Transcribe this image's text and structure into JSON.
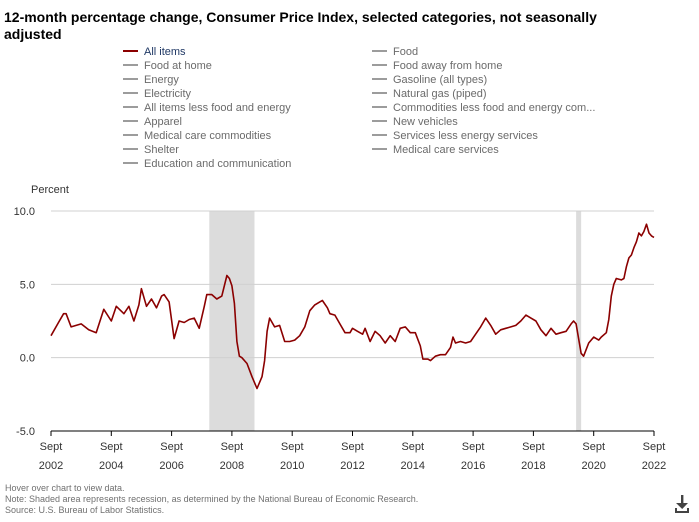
{
  "title": "12-month percentage change, Consumer Price Index, selected categories, not seasonally adjusted",
  "legend": [
    {
      "label": "All items",
      "active": true
    },
    {
      "label": "Food",
      "active": false
    },
    {
      "label": "Food at home",
      "active": false
    },
    {
      "label": "Food away from home",
      "active": false
    },
    {
      "label": "Energy",
      "active": false
    },
    {
      "label": "Gasoline (all types)",
      "active": false
    },
    {
      "label": "Electricity",
      "active": false
    },
    {
      "label": "Natural gas (piped)",
      "active": false
    },
    {
      "label": "All items less food and energy",
      "active": false
    },
    {
      "label": "Commodities less food and energy com...",
      "active": false
    },
    {
      "label": "Apparel",
      "active": false
    },
    {
      "label": "New vehicles",
      "active": false
    },
    {
      "label": "Medical care commodities",
      "active": false
    },
    {
      "label": "Services less energy services",
      "active": false
    },
    {
      "label": "Shelter",
      "active": false
    },
    {
      "label": "Medical care services",
      "active": false
    },
    {
      "label": "Education and communication",
      "active": false
    }
  ],
  "colors": {
    "series": "#8b0000",
    "recession": "#dcdcdc",
    "grid": "#d0d0d0",
    "axis": "#000000",
    "legend_inactive": "#9c9c9c"
  },
  "footer": {
    "hover": "Hover over chart to view data.",
    "note": "Note: Shaded area represents recession, as determined by the National Bureau of Economic Research.",
    "source": "Source: U.S. Bureau of Labor Statistics."
  },
  "download_icon": "download-icon",
  "chart_data": {
    "type": "line",
    "title": "12-month percentage change, Consumer Price Index, selected categories, not seasonally adjusted",
    "ylabel": "Percent",
    "ylim": [
      -5.0,
      10.0
    ],
    "y_ticks": [
      "10.0",
      "5.0",
      "0.0",
      "-5.0"
    ],
    "y_tick_values": [
      10,
      5,
      0,
      -5
    ],
    "x_range": [
      "2002-09",
      "2022-09"
    ],
    "x_ticks": [
      {
        "month": "Sept",
        "year": "2002"
      },
      {
        "month": "Sept",
        "year": "2004"
      },
      {
        "month": "Sept",
        "year": "2006"
      },
      {
        "month": "Sept",
        "year": "2008"
      },
      {
        "month": "Sept",
        "year": "2010"
      },
      {
        "month": "Sept",
        "year": "2012"
      },
      {
        "month": "Sept",
        "year": "2014"
      },
      {
        "month": "Sept",
        "year": "2016"
      },
      {
        "month": "Sept",
        "year": "2018"
      },
      {
        "month": "Sept",
        "year": "2020"
      },
      {
        "month": "Sept",
        "year": "2022"
      }
    ],
    "grid": "horizontal",
    "recessions": [
      {
        "start": "2007-12",
        "end": "2009-06"
      },
      {
        "start": "2020-02",
        "end": "2020-04"
      }
    ],
    "series": [
      {
        "name": "All items",
        "points": [
          [
            "2002-09",
            1.5
          ],
          [
            "2002-12",
            2.4
          ],
          [
            "2003-02",
            3.0
          ],
          [
            "2003-03",
            3.0
          ],
          [
            "2003-05",
            2.1
          ],
          [
            "2003-09",
            2.3
          ],
          [
            "2003-12",
            1.9
          ],
          [
            "2004-03",
            1.7
          ],
          [
            "2004-06",
            3.3
          ],
          [
            "2004-09",
            2.5
          ],
          [
            "2004-11",
            3.5
          ],
          [
            "2005-02",
            3.0
          ],
          [
            "2005-04",
            3.5
          ],
          [
            "2005-06",
            2.5
          ],
          [
            "2005-08",
            3.6
          ],
          [
            "2005-09",
            4.7
          ],
          [
            "2005-11",
            3.5
          ],
          [
            "2006-01",
            4.0
          ],
          [
            "2006-03",
            3.4
          ],
          [
            "2006-05",
            4.2
          ],
          [
            "2006-06",
            4.3
          ],
          [
            "2006-08",
            3.8
          ],
          [
            "2006-10",
            1.3
          ],
          [
            "2006-12",
            2.5
          ],
          [
            "2007-02",
            2.4
          ],
          [
            "2007-04",
            2.6
          ],
          [
            "2007-06",
            2.7
          ],
          [
            "2007-08",
            2.0
          ],
          [
            "2007-10",
            3.5
          ],
          [
            "2007-11",
            4.3
          ],
          [
            "2008-01",
            4.3
          ],
          [
            "2008-03",
            4.0
          ],
          [
            "2008-05",
            4.2
          ],
          [
            "2008-07",
            5.6
          ],
          [
            "2008-08",
            5.4
          ],
          [
            "2008-09",
            4.9
          ],
          [
            "2008-10",
            3.7
          ],
          [
            "2008-11",
            1.1
          ],
          [
            "2008-12",
            0.1
          ],
          [
            "2009-01",
            0.0
          ],
          [
            "2009-03",
            -0.4
          ],
          [
            "2009-05",
            -1.3
          ],
          [
            "2009-07",
            -2.1
          ],
          [
            "2009-09",
            -1.3
          ],
          [
            "2009-10",
            -0.2
          ],
          [
            "2009-11",
            1.8
          ],
          [
            "2009-12",
            2.7
          ],
          [
            "2010-02",
            2.1
          ],
          [
            "2010-04",
            2.2
          ],
          [
            "2010-06",
            1.1
          ],
          [
            "2010-08",
            1.1
          ],
          [
            "2010-10",
            1.2
          ],
          [
            "2010-12",
            1.5
          ],
          [
            "2011-02",
            2.1
          ],
          [
            "2011-04",
            3.2
          ],
          [
            "2011-06",
            3.6
          ],
          [
            "2011-08",
            3.8
          ],
          [
            "2011-09",
            3.9
          ],
          [
            "2011-11",
            3.4
          ],
          [
            "2011-12",
            3.0
          ],
          [
            "2012-02",
            2.9
          ],
          [
            "2012-04",
            2.3
          ],
          [
            "2012-06",
            1.7
          ],
          [
            "2012-08",
            1.7
          ],
          [
            "2012-09",
            2.0
          ],
          [
            "2012-11",
            1.8
          ],
          [
            "2013-01",
            1.6
          ],
          [
            "2013-02",
            2.0
          ],
          [
            "2013-04",
            1.1
          ],
          [
            "2013-06",
            1.8
          ],
          [
            "2013-08",
            1.5
          ],
          [
            "2013-10",
            1.0
          ],
          [
            "2013-12",
            1.5
          ],
          [
            "2014-02",
            1.1
          ],
          [
            "2014-04",
            2.0
          ],
          [
            "2014-06",
            2.1
          ],
          [
            "2014-08",
            1.7
          ],
          [
            "2014-10",
            1.7
          ],
          [
            "2014-12",
            0.8
          ],
          [
            "2015-01",
            -0.1
          ],
          [
            "2015-03",
            -0.1
          ],
          [
            "2015-04",
            -0.2
          ],
          [
            "2015-06",
            0.1
          ],
          [
            "2015-08",
            0.2
          ],
          [
            "2015-10",
            0.2
          ],
          [
            "2015-12",
            0.7
          ],
          [
            "2016-01",
            1.4
          ],
          [
            "2016-02",
            1.0
          ],
          [
            "2016-04",
            1.1
          ],
          [
            "2016-06",
            1.0
          ],
          [
            "2016-08",
            1.1
          ],
          [
            "2016-10",
            1.6
          ],
          [
            "2016-12",
            2.1
          ],
          [
            "2017-02",
            2.7
          ],
          [
            "2017-04",
            2.2
          ],
          [
            "2017-06",
            1.6
          ],
          [
            "2017-08",
            1.9
          ],
          [
            "2017-10",
            2.0
          ],
          [
            "2017-12",
            2.1
          ],
          [
            "2018-02",
            2.2
          ],
          [
            "2018-04",
            2.5
          ],
          [
            "2018-06",
            2.9
          ],
          [
            "2018-08",
            2.7
          ],
          [
            "2018-10",
            2.5
          ],
          [
            "2018-12",
            1.9
          ],
          [
            "2019-02",
            1.5
          ],
          [
            "2019-04",
            2.0
          ],
          [
            "2019-06",
            1.6
          ],
          [
            "2019-08",
            1.7
          ],
          [
            "2019-10",
            1.8
          ],
          [
            "2019-12",
            2.3
          ],
          [
            "2020-01",
            2.5
          ],
          [
            "2020-02",
            2.3
          ],
          [
            "2020-04",
            0.3
          ],
          [
            "2020-05",
            0.1
          ],
          [
            "2020-07",
            1.0
          ],
          [
            "2020-09",
            1.4
          ],
          [
            "2020-11",
            1.2
          ],
          [
            "2020-12",
            1.4
          ],
          [
            "2021-02",
            1.7
          ],
          [
            "2021-03",
            2.6
          ],
          [
            "2021-04",
            4.2
          ],
          [
            "2021-05",
            5.0
          ],
          [
            "2021-06",
            5.4
          ],
          [
            "2021-08",
            5.3
          ],
          [
            "2021-09",
            5.4
          ],
          [
            "2021-10",
            6.2
          ],
          [
            "2021-11",
            6.8
          ],
          [
            "2021-12",
            7.0
          ],
          [
            "2022-01",
            7.5
          ],
          [
            "2022-02",
            7.9
          ],
          [
            "2022-03",
            8.5
          ],
          [
            "2022-04",
            8.3
          ],
          [
            "2022-05",
            8.6
          ],
          [
            "2022-06",
            9.1
          ],
          [
            "2022-07",
            8.5
          ],
          [
            "2022-08",
            8.3
          ],
          [
            "2022-09",
            8.2
          ]
        ]
      }
    ]
  }
}
